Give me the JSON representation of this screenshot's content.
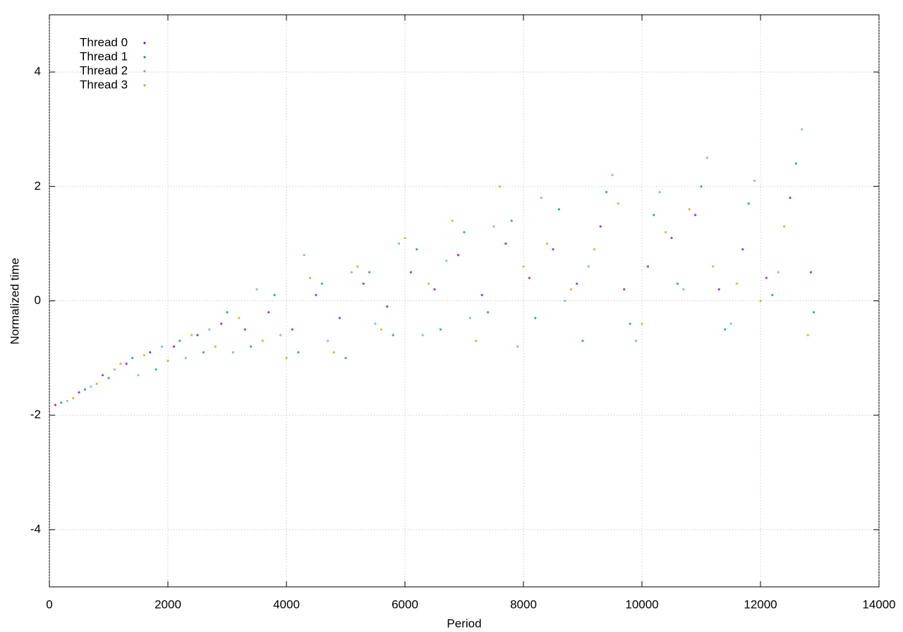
{
  "chart_data": {
    "type": "scatter",
    "xlabel": "Period",
    "ylabel": "Normalized time",
    "xlim": [
      0,
      14000
    ],
    "ylim": [
      -5,
      5
    ],
    "xticks": [
      0,
      2000,
      4000,
      6000,
      8000,
      10000,
      12000,
      14000
    ],
    "yticks": [
      -4,
      -2,
      0,
      2,
      4
    ],
    "grid": true,
    "legend": "upper left",
    "series": [
      {
        "name": "Thread 0",
        "color": "#9400d3",
        "x": [
          100,
          500,
          900,
          1300,
          1700,
          2100,
          2500,
          2900,
          3300,
          3700,
          4100,
          4500,
          4900,
          5300,
          5700,
          6100,
          6500,
          6900,
          7300,
          7700,
          8100,
          8500,
          8900,
          9300,
          9700,
          10100,
          10500,
          10900,
          11300,
          11700,
          12100,
          12500,
          12850
        ],
        "values": [
          -1.82,
          -1.6,
          -1.3,
          -1.1,
          -0.9,
          -0.8,
          -0.6,
          -0.4,
          -0.5,
          -0.2,
          -0.5,
          0.1,
          -0.3,
          0.3,
          -0.1,
          0.5,
          0.2,
          0.8,
          0.1,
          1.0,
          0.4,
          0.9,
          0.3,
          1.3,
          0.2,
          0.6,
          1.1,
          1.5,
          0.2,
          0.9,
          0.4,
          1.8,
          0.5
        ]
      },
      {
        "name": "Thread 1",
        "color": "#009e73",
        "x": [
          200,
          600,
          1000,
          1400,
          1800,
          2200,
          2600,
          3000,
          3400,
          3800,
          4200,
          4600,
          5000,
          5400,
          5800,
          6200,
          6600,
          7000,
          7400,
          7800,
          8200,
          8600,
          9000,
          9400,
          9800,
          10200,
          10600,
          11000,
          11400,
          11800,
          12200,
          12600,
          12900
        ],
        "values": [
          -1.78,
          -1.55,
          -1.35,
          -1.0,
          -1.2,
          -0.7,
          -0.9,
          -0.2,
          -0.8,
          0.1,
          -0.9,
          0.3,
          -1.0,
          0.5,
          -0.6,
          0.9,
          -0.5,
          1.2,
          -0.2,
          1.4,
          -0.3,
          1.6,
          -0.7,
          1.9,
          -0.4,
          1.5,
          0.3,
          2.0,
          -0.5,
          1.7,
          0.1,
          2.4,
          -0.2
        ]
      },
      {
        "name": "Thread 2",
        "color": "#56b4e9",
        "x": [
          300,
          700,
          1100,
          1500,
          1900,
          2300,
          2700,
          3100,
          3500,
          3900,
          4300,
          4700,
          5100,
          5500,
          5900,
          6300,
          6700,
          7100,
          7500,
          7900,
          8300,
          8700,
          9100,
          9500,
          9900,
          10300,
          10700,
          11100,
          11500,
          11900,
          12300,
          12700
        ],
        "values": [
          -1.75,
          -1.5,
          -1.2,
          -1.3,
          -0.8,
          -1.0,
          -0.5,
          -0.9,
          0.2,
          -0.6,
          0.8,
          -0.7,
          0.5,
          -0.4,
          1.0,
          -0.6,
          0.7,
          -0.3,
          1.3,
          -0.8,
          1.8,
          0.0,
          0.6,
          2.2,
          -0.7,
          1.9,
          0.2,
          2.5,
          -0.4,
          2.1,
          0.5,
          3.0
        ]
      },
      {
        "name": "Thread 3",
        "color": "#e69f00",
        "x": [
          400,
          800,
          1200,
          1600,
          2000,
          2400,
          2800,
          3200,
          3600,
          4000,
          4400,
          4800,
          5200,
          5600,
          6000,
          6400,
          6800,
          7200,
          7600,
          8000,
          8400,
          8800,
          9200,
          9600,
          10000,
          10400,
          10800,
          11200,
          11600,
          12000,
          12400,
          12800
        ],
        "values": [
          -1.7,
          -1.45,
          -1.1,
          -0.95,
          -1.05,
          -0.6,
          -0.8,
          -0.3,
          -0.7,
          -1.0,
          0.4,
          -0.9,
          0.6,
          -0.5,
          1.1,
          0.3,
          1.4,
          -0.7,
          2.0,
          0.6,
          1.0,
          0.2,
          0.9,
          1.7,
          -0.4,
          1.2,
          1.6,
          0.6,
          0.3,
          0.0,
          1.3,
          -0.6
        ]
      }
    ]
  }
}
